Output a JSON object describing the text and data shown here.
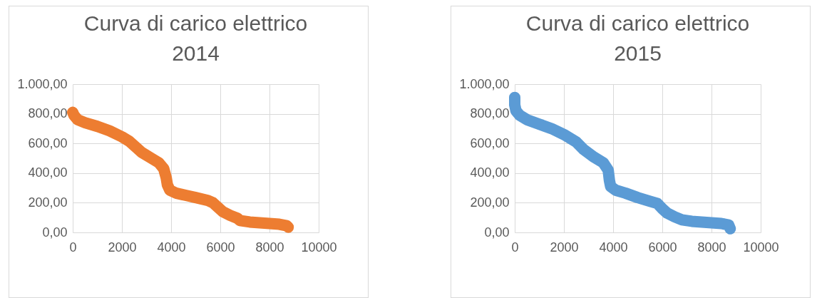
{
  "chart_data": [
    {
      "type": "line",
      "title": "Curva di carico elettrico 2014",
      "xlim": [
        0,
        10000
      ],
      "xticks": [
        0,
        2000,
        4000,
        6000,
        8000,
        10000
      ],
      "ylim": [
        0,
        1000
      ],
      "yticks": [
        {
          "value": 0,
          "label": "0,00"
        },
        {
          "value": 200,
          "label": "200,00"
        },
        {
          "value": 400,
          "label": "400,00"
        },
        {
          "value": 600,
          "label": "600,00"
        },
        {
          "value": 800,
          "label": "800,00"
        },
        {
          "value": 1000,
          "label": "1.000,00"
        }
      ],
      "grid": true,
      "series": [
        {
          "color": "#ed7d31",
          "x": [
            0,
            50,
            200,
            500,
            1000,
            1500,
            2000,
            2300,
            2600,
            2800,
            3200,
            3500,
            3700,
            3800,
            3850,
            3950,
            4200,
            4600,
            5000,
            5500,
            5700,
            5900,
            6100,
            6400,
            6700,
            6800,
            7200,
            7600,
            8000,
            8400,
            8700,
            8760
          ],
          "values": [
            810,
            790,
            760,
            740,
            715,
            685,
            645,
            615,
            570,
            540,
            500,
            470,
            430,
            370,
            320,
            285,
            265,
            250,
            235,
            215,
            200,
            170,
            140,
            115,
            95,
            80,
            70,
            65,
            60,
            55,
            45,
            35
          ]
        }
      ]
    },
    {
      "type": "line",
      "title": "Curva di carico elettrico 2015",
      "xlim": [
        0,
        10000
      ],
      "xticks": [
        0,
        2000,
        4000,
        6000,
        8000,
        10000
      ],
      "ylim": [
        0,
        1000
      ],
      "yticks": [
        {
          "value": 0,
          "label": "0,00"
        },
        {
          "value": 200,
          "label": "200,00"
        },
        {
          "value": 400,
          "label": "400,00"
        },
        {
          "value": 600,
          "label": "600,00"
        },
        {
          "value": 800,
          "label": "800,00"
        },
        {
          "value": 1000,
          "label": "1.000,00"
        }
      ],
      "grid": true,
      "series": [
        {
          "color": "#5b9bd5",
          "x": [
            0,
            0,
            50,
            200,
            500,
            1000,
            1500,
            2000,
            2500,
            2800,
            3200,
            3600,
            3800,
            3850,
            3900,
            4100,
            4500,
            5000,
            5500,
            5800,
            6000,
            6200,
            6500,
            6800,
            7200,
            7600,
            8000,
            8400,
            8700,
            8760
          ],
          "values": [
            910,
            860,
            820,
            790,
            760,
            730,
            700,
            660,
            610,
            560,
            510,
            470,
            420,
            350,
            310,
            285,
            265,
            235,
            210,
            195,
            160,
            130,
            105,
            85,
            75,
            70,
            65,
            60,
            50,
            25
          ]
        }
      ]
    }
  ]
}
